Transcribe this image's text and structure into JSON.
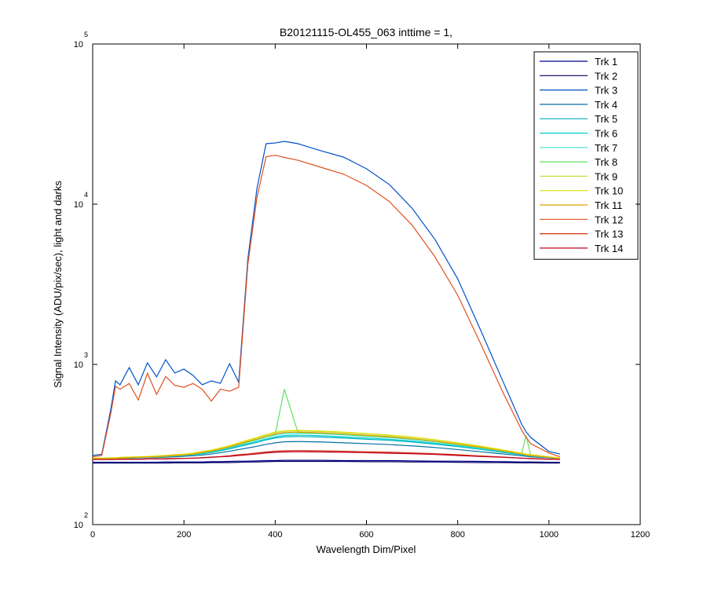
{
  "chart_data": {
    "type": "line",
    "title": "B20121115-OL455_063 inttime = 1,",
    "x_label": "Wavelength Dim/Pixel",
    "y_label": "Signal Intensity (ADU/pix/sec), light and darks",
    "y_scale": "log",
    "grid": false,
    "legend": "northeast",
    "xlim": [
      0,
      1200
    ],
    "xticks": [
      0,
      200,
      400,
      600,
      800,
      1000,
      1200
    ],
    "ylim": [
      100,
      100000
    ],
    "yticks": [
      {
        "value": 100,
        "label": "10",
        "exponent": "2"
      },
      {
        "value": 1000,
        "label": "10",
        "exponent": "3"
      },
      {
        "value": 10000,
        "label": "10",
        "exponent": "4"
      },
      {
        "value": 100000,
        "label": "10",
        "exponent": "5"
      }
    ],
    "x": [
      0,
      20,
      40,
      50,
      60,
      80,
      100,
      120,
      140,
      160,
      180,
      200,
      220,
      240,
      260,
      280,
      300,
      320,
      340,
      360,
      380,
      400,
      420,
      450,
      500,
      550,
      600,
      650,
      700,
      750,
      800,
      850,
      900,
      940,
      950,
      960,
      1000,
      1024
    ],
    "series": [
      {
        "name": "Trk 1",
        "color": "#00008f",
        "values": [
          245,
          245,
          245,
          245,
          245,
          245,
          245,
          245,
          245,
          246,
          246,
          246,
          246,
          246,
          247,
          247,
          248,
          249,
          249,
          250,
          251,
          251,
          252,
          252,
          252,
          251,
          251,
          251,
          250,
          249,
          249,
          248,
          247,
          246,
          246,
          246,
          245,
          245
        ]
      },
      {
        "name": "Trk 2",
        "color": "#000060",
        "values": [
          242,
          242,
          242,
          242,
          242,
          242,
          242,
          242,
          242,
          242,
          243,
          243,
          243,
          243,
          244,
          244,
          244,
          245,
          246,
          246,
          247,
          248,
          248,
          248,
          248,
          248,
          247,
          247,
          246,
          246,
          245,
          244,
          244,
          243,
          243,
          243,
          242,
          242
        ]
      },
      {
        "name": "Trk 3",
        "color": "#0050c8",
        "values": [
          270,
          275,
          531,
          789,
          746,
          955,
          746,
          1023,
          836,
          1070,
          884,
          935,
          853,
          746,
          789,
          762,
          1010,
          773,
          4540,
          12530,
          23850,
          24100,
          24660,
          23850,
          21550,
          19660,
          16640,
          13270,
          9440,
          6030,
          3420,
          1640,
          773,
          424,
          379,
          350,
          286,
          276
        ]
      },
      {
        "name": "Trk 4",
        "color": "#0070a0",
        "values": [
          258,
          258,
          259,
          259,
          259,
          260,
          261,
          262,
          262,
          264,
          265,
          267,
          269,
          272,
          276,
          281,
          287,
          294,
          301,
          308,
          317,
          324,
          329,
          330,
          328,
          324,
          320,
          316,
          310,
          303,
          294,
          285,
          276,
          269,
          267,
          265,
          261,
          258
        ]
      },
      {
        "name": "Trk 5",
        "color": "#00b0c0",
        "values": [
          258,
          258,
          259,
          259,
          260,
          261,
          262,
          263,
          264,
          266,
          268,
          270,
          273,
          277,
          282,
          289,
          297,
          307,
          316,
          326,
          338,
          347,
          353,
          355,
          352,
          347,
          341,
          336,
          328,
          318,
          307,
          295,
          282,
          273,
          270,
          268,
          262,
          258
        ]
      },
      {
        "name": "Trk 6",
        "color": "#00d0d0",
        "values": [
          258,
          258,
          259,
          259,
          260,
          261,
          262,
          263,
          264,
          266,
          268,
          270,
          274,
          278,
          284,
          291,
          300,
          310,
          320,
          331,
          343,
          353,
          360,
          362,
          359,
          353,
          347,
          341,
          333,
          322,
          310,
          297,
          284,
          274,
          270,
          268,
          262,
          258
        ]
      },
      {
        "name": "Trk 7",
        "color": "#40e0d0",
        "values": [
          258,
          258,
          259,
          259,
          260,
          261,
          263,
          264,
          265,
          267,
          269,
          272,
          275,
          281,
          287,
          295,
          304,
          315,
          326,
          338,
          352,
          363,
          370,
          372,
          369,
          363,
          356,
          349,
          340,
          329,
          315,
          301,
          287,
          275,
          272,
          269,
          263,
          258
        ]
      },
      {
        "name": "Trk 8",
        "color": "#60e060",
        "values": [
          258,
          258,
          259,
          259,
          260,
          261,
          263,
          264,
          265,
          267,
          269,
          272,
          275,
          281,
          287,
          295,
          305,
          316,
          328,
          340,
          354,
          365,
          700,
          375,
          372,
          366,
          358,
          351,
          342,
          330,
          316,
          302,
          288,
          276,
          360,
          270,
          263,
          258
        ]
      },
      {
        "name": "Trk 9",
        "color": "#c0e040",
        "values": [
          260,
          260,
          261,
          261,
          263,
          264,
          265,
          266,
          268,
          270,
          273,
          275,
          279,
          285,
          291,
          300,
          310,
          323,
          335,
          348,
          363,
          375,
          383,
          385,
          381,
          375,
          368,
          360,
          350,
          338,
          323,
          308,
          291,
          279,
          275,
          273,
          265,
          260
        ]
      },
      {
        "name": "Trk 10",
        "color": "#e0e000",
        "values": [
          260,
          260,
          261,
          261,
          263,
          264,
          265,
          266,
          268,
          270,
          273,
          275,
          279,
          286,
          292,
          301,
          311,
          324,
          337,
          350,
          365,
          378,
          385,
          388,
          384,
          378,
          370,
          362,
          352,
          339,
          324,
          309,
          292,
          279,
          275,
          273,
          265,
          260
        ]
      },
      {
        "name": "Trk 11",
        "color": "#e0a000",
        "values": [
          258,
          258,
          259,
          259,
          260,
          262,
          263,
          264,
          265,
          268,
          270,
          272,
          276,
          282,
          288,
          296,
          306,
          318,
          330,
          342,
          356,
          368,
          376,
          378,
          374,
          368,
          361,
          354,
          344,
          332,
          318,
          304,
          288,
          276,
          272,
          270,
          263,
          258
        ]
      },
      {
        "name": "Trk 12",
        "color": "#e05020",
        "values": [
          265,
          270,
          500,
          730,
          700,
          760,
          600,
          880,
          650,
          840,
          740,
          720,
          760,
          700,
          590,
          700,
          680,
          720,
          4200,
          11000,
          19800,
          20200,
          19600,
          18800,
          17000,
          15400,
          13100,
          10400,
          7400,
          4700,
          2700,
          1350,
          660,
          390,
          350,
          320,
          280,
          265
        ]
      },
      {
        "name": "Trk 13",
        "color": "#d03010",
        "values": [
          255,
          255,
          255,
          255,
          256,
          256,
          256,
          257,
          257,
          258,
          259,
          259,
          260,
          262,
          264,
          266,
          269,
          273,
          276,
          280,
          284,
          287,
          289,
          290,
          289,
          287,
          285,
          283,
          280,
          277,
          273,
          268,
          264,
          260,
          259,
          259,
          256,
          255
        ]
      },
      {
        "name": "Trk 14",
        "color": "#c00020",
        "values": [
          255,
          255,
          255,
          255,
          256,
          256,
          256,
          257,
          257,
          257,
          258,
          259,
          260,
          261,
          263,
          265,
          267,
          270,
          273,
          276,
          280,
          283,
          284,
          285,
          284,
          283,
          281,
          279,
          277,
          274,
          270,
          266,
          263,
          260,
          259,
          258,
          256,
          255
        ]
      }
    ]
  }
}
